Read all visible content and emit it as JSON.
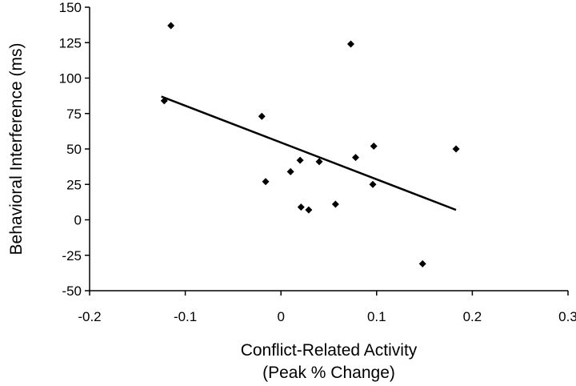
{
  "chart_data": {
    "type": "scatter",
    "xlabel_lines": [
      "Conflict-Related Activity",
      "(Peak % Change)"
    ],
    "ylabel": "Behavioral Interference (ms)",
    "xlim": [
      -0.2,
      0.3
    ],
    "ylim": [
      -50,
      150
    ],
    "x_ticks": [
      -0.2,
      -0.1,
      0,
      0.1,
      0.2,
      0.3
    ],
    "x_tick_labels": [
      "-0.2",
      "-0.1",
      "0",
      "0.1",
      "0.2",
      "0.3"
    ],
    "y_ticks": [
      -50,
      -25,
      0,
      25,
      50,
      75,
      100,
      125,
      150
    ],
    "y_tick_labels": [
      "-50",
      "-25",
      "0",
      "25",
      "50",
      "75",
      "100",
      "125",
      "150"
    ],
    "grid": false,
    "legend": "none",
    "points": [
      {
        "x": -0.115,
        "y": 137
      },
      {
        "x": -0.122,
        "y": 84
      },
      {
        "x": -0.02,
        "y": 73
      },
      {
        "x": -0.016,
        "y": 27
      },
      {
        "x": 0.01,
        "y": 34
      },
      {
        "x": 0.02,
        "y": 42
      },
      {
        "x": 0.021,
        "y": 9
      },
      {
        "x": 0.029,
        "y": 7
      },
      {
        "x": 0.04,
        "y": 41
      },
      {
        "x": 0.057,
        "y": 11
      },
      {
        "x": 0.073,
        "y": 124
      },
      {
        "x": 0.078,
        "y": 44
      },
      {
        "x": 0.096,
        "y": 25
      },
      {
        "x": 0.097,
        "y": 52
      },
      {
        "x": 0.148,
        "y": -31
      },
      {
        "x": 0.183,
        "y": 50
      }
    ],
    "trendline": {
      "type": "linear",
      "x": [
        -0.125,
        0.183
      ],
      "y": [
        87,
        7
      ]
    },
    "marker_color": "#000000",
    "line_color": "#000000"
  }
}
